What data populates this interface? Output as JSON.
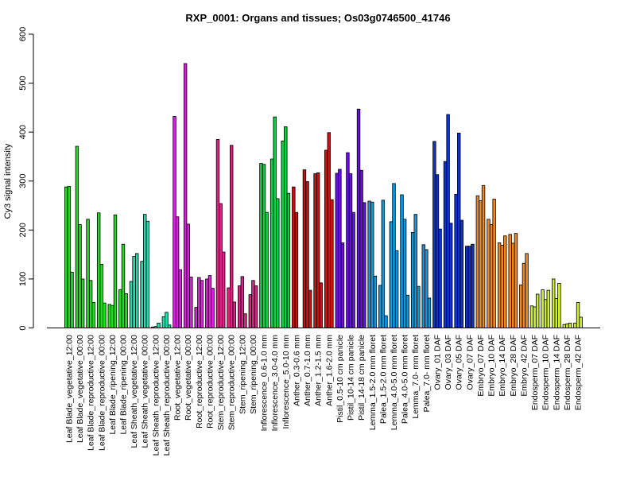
{
  "chart_data": {
    "type": "bar",
    "title": "RXP_0001: Organs and tissues; Os03g0746500_41746",
    "ylabel": "Cy3 signal intensity",
    "xlabel": "",
    "ylim": [
      0,
      600
    ],
    "yticks": [
      0,
      100,
      200,
      300,
      400,
      500,
      600
    ],
    "grid": false,
    "legend": "none",
    "categories": [
      "Leaf Blade_vegetative_12:00",
      "Leaf Blade_vegetative_00:00",
      "Leaf Blade_reproductive_12:00",
      "Leaf Blade_reproductive_00:00",
      "Leaf Blade_ripening_12:00",
      "Leaf Blade_ripening_00:00",
      "Leaf Sheath_vegetative_12:00",
      "Leaf Sheath_vegetative_00:00",
      "Leaf Sheath_reproductive_12:00",
      "Leaf Sheath_reproductive_00:00",
      "Root_vegetative_12:00",
      "Root_vegetative_00:00",
      "Root_reproductive_12:00",
      "Root_reproductive_00:00",
      "Stem_reproductive_12:00",
      "Stem_reproductive_00:00",
      "Stem_ripening_12:00",
      "Stem_ripening_00:00",
      "Inflorescence_0.6-1.0 mm",
      "Inflorescence_3.0-4.0 mm",
      "Inflorescence_5.0-10 mm",
      "Anther_0.3-0.6 mm",
      "Anther_0.7-1.0 mm",
      "Anther_1.2-1.5 mm",
      "Anther_1.6-2.0 mm",
      "Pistil_0.5-10 cm panicle",
      "Pistil_10-14 cm panicle",
      "Pistil_14-18 cm panicle",
      "Lemma_1.5-2.0 mm floret",
      "Palea_1.5-2.0 mm floret",
      "Lemma_4.0-5.0 mm floret",
      "Palea_4.0-5.0 mm floret",
      "Lemma_7.0- mm floret",
      "Palea_7.0- mm floret",
      "Ovary_01 DAF",
      "Ovary_03 DAF",
      "Ovary_05 DAF",
      "Ovary_07 DAF",
      "Embryo_07 DAF",
      "Embryo_10 DAF",
      "Embryo_14 DAF",
      "Embryo_28 DAF",
      "Embryo_42 DAF",
      "Endosperm_07 DAF",
      "Endosperm_10 DAF",
      "Endosperm_14 DAF",
      "Endosperm_28 DAF",
      "Endosperm_42 DAF"
    ],
    "values": [
      [
        288,
        289,
        114
      ],
      [
        371,
        211,
        100
      ],
      [
        222,
        97,
        52
      ],
      [
        235,
        130,
        51
      ],
      [
        48,
        46,
        231
      ],
      [
        78,
        171,
        70
      ],
      [
        95,
        146,
        152
      ],
      [
        136,
        232,
        218
      ],
      [
        2,
        3,
        10
      ],
      [
        23,
        32,
        6
      ],
      [
        432,
        227,
        119
      ],
      [
        540,
        212,
        104
      ],
      [
        42,
        103,
        97
      ],
      [
        100,
        107,
        81
      ],
      [
        385,
        254,
        155
      ],
      [
        82,
        373,
        53
      ],
      [
        86,
        105,
        29
      ],
      [
        68,
        97,
        86
      ],
      [
        336,
        334,
        236
      ],
      [
        345,
        431,
        264
      ],
      [
        382,
        411,
        275
      ],
      [
        288,
        236,
        0
      ],
      [
        323,
        299,
        77
      ],
      [
        315,
        317,
        92
      ],
      [
        363,
        399,
        262
      ],
      [
        316,
        324,
        174
      ],
      [
        358,
        315,
        236
      ],
      [
        447,
        322,
        256
      ],
      [
        259,
        257,
        106
      ],
      [
        87,
        261,
        25
      ],
      [
        217,
        295,
        158
      ],
      [
        272,
        222,
        67
      ],
      [
        195,
        232,
        85
      ],
      [
        170,
        160,
        61
      ],
      [
        381,
        313,
        202
      ],
      [
        340,
        436,
        214
      ],
      [
        273,
        398,
        220
      ],
      [
        167,
        167,
        171
      ],
      [
        270,
        260,
        291
      ],
      [
        222,
        211,
        263
      ],
      [
        174,
        169,
        188
      ],
      [
        191,
        173,
        193
      ],
      [
        88,
        132,
        152
      ],
      [
        45,
        43,
        69
      ],
      [
        78,
        58,
        77
      ],
      [
        100,
        60,
        91
      ],
      [
        7,
        8,
        10
      ],
      [
        10,
        52,
        22
      ]
    ],
    "colors": [
      "#22dd22",
      "#22dd22",
      "#22dd22",
      "#22dd22",
      "#22dd22",
      "#22dd22",
      "#22ddaa",
      "#22ddaa",
      "#22ddaa",
      "#22ddaa",
      "#dd22dd",
      "#dd22dd",
      "#dd22dd",
      "#dd22dd",
      "#dd2288",
      "#dd2288",
      "#dd2288",
      "#dd2288",
      "#11cc44",
      "#11cc44",
      "#11cc44",
      "#cc1111",
      "#cc1111",
      "#cc1111",
      "#cc1111",
      "#6611dd",
      "#6611dd",
      "#6611dd",
      "#1199dd",
      "#1199dd",
      "#1199dd",
      "#1199dd",
      "#1199dd",
      "#1199dd",
      "#1133cc",
      "#1133cc",
      "#1133cc",
      "#1133cc",
      "#ee8822",
      "#ee8822",
      "#ee8822",
      "#ee8822",
      "#ee8822",
      "#ccee33",
      "#ccee33",
      "#ccee33",
      "#ccee33",
      "#ccee33"
    ]
  }
}
